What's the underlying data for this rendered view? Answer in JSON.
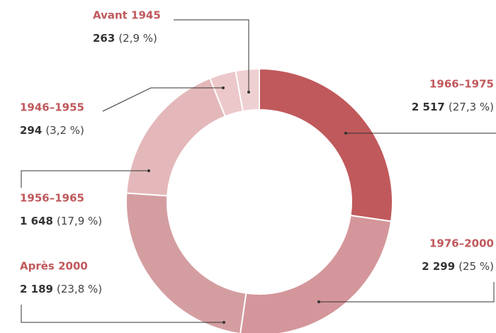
{
  "chart_data": {
    "type": "donut",
    "categories": [
      "1966–1975",
      "1976–2000",
      "Après 2000",
      "1956–1965",
      "1946–1955",
      "Avant 1945"
    ],
    "values": [
      2517,
      2299,
      2189,
      1648,
      294,
      263
    ],
    "value_labels": [
      "2 517",
      "2 299",
      "2 189",
      "1 648",
      "294",
      "263"
    ],
    "percents": [
      27.3,
      25,
      23.8,
      17.9,
      3.2,
      2.9
    ],
    "percent_labels": [
      "(27,3 %)",
      "(25 %)",
      "(23,8 %)",
      "(17,9 %)",
      "(3,2 %)",
      "(2,9 %)"
    ],
    "colors": [
      "#c0595c",
      "#d4969a",
      "#d49ea1",
      "#e4b8ba",
      "#ecc8ca",
      "#efd0d2"
    ]
  }
}
